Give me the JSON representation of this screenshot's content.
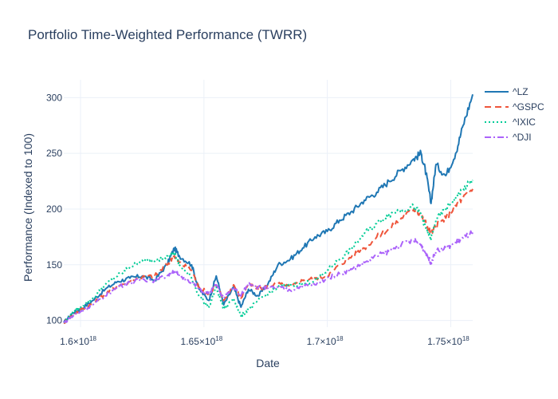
{
  "chart_data": {
    "type": "line",
    "title": "Portfolio Time-Weighted Performance (TWRR)",
    "xlabel": "Date",
    "ylabel": "Performance (Indexed to 100)",
    "xlim": [
      1.5932e+18,
      1.7589e+18
    ],
    "ylim": [
      94,
      316
    ],
    "x_ticks": [
      {
        "value": 1.6e+18,
        "base": "1.6×10",
        "exp": "18"
      },
      {
        "value": 1.65e+18,
        "base": "1.65×10",
        "exp": "18"
      },
      {
        "value": 1.7e+18,
        "base": "1.7×10",
        "exp": "18"
      },
      {
        "value": 1.75e+18,
        "base": "1.75×10",
        "exp": "18"
      }
    ],
    "y_ticks": [
      100,
      150,
      200,
      250,
      300
    ],
    "grid": true,
    "legend_position": "top-right",
    "x": [
      1.5932e+18,
      1.597e+18,
      1.6e+18,
      1.605e+18,
      1.61e+18,
      1.615e+18,
      1.62e+18,
      1.625e+18,
      1.63e+18,
      1.635e+18,
      1.638e+18,
      1.64e+18,
      1.645e+18,
      1.648e+18,
      1.652e+18,
      1.655e+18,
      1.658e+18,
      1.662e+18,
      1.665e+18,
      1.668e+18,
      1.672e+18,
      1.676e+18,
      1.68e+18,
      1.685e+18,
      1.69e+18,
      1.695e+18,
      1.7e+18,
      1.705e+18,
      1.71e+18,
      1.715e+18,
      1.72e+18,
      1.725e+18,
      1.73e+18,
      1.735e+18,
      1.738e+18,
      1.74e+18,
      1.742e+18,
      1.744e+18,
      1.748e+18,
      1.752e+18,
      1.755e+18,
      1.7589e+18
    ],
    "series": [
      {
        "name": "^LZ",
        "color": "#1f77b4",
        "dash": "",
        "values": [
          98,
          107,
          110,
          118,
          128,
          135,
          138,
          140,
          136,
          150,
          165,
          158,
          150,
          128,
          118,
          140,
          114,
          130,
          112,
          128,
          122,
          133,
          150,
          155,
          165,
          175,
          180,
          190,
          198,
          208,
          215,
          225,
          235,
          245,
          250,
          232,
          205,
          240,
          230,
          250,
          275,
          303
        ]
      },
      {
        "name": "^GSPC",
        "color": "#ef553b",
        "dash": "8,5",
        "values": [
          98,
          105,
          110,
          115,
          124,
          131,
          135,
          139,
          140,
          150,
          158,
          152,
          145,
          130,
          124,
          132,
          118,
          132,
          120,
          133,
          128,
          131,
          133,
          130,
          136,
          138,
          140,
          150,
          158,
          165,
          175,
          182,
          192,
          200,
          195,
          187,
          178,
          185,
          192,
          203,
          210,
          218
        ]
      },
      {
        "name": "^IXIC",
        "color": "#00cc96",
        "dash": "2,3",
        "values": [
          98,
          108,
          112,
          120,
          132,
          140,
          148,
          154,
          153,
          158,
          161,
          150,
          138,
          122,
          112,
          130,
          110,
          120,
          104,
          110,
          118,
          124,
          130,
          132,
          133,
          136,
          145,
          155,
          165,
          178,
          187,
          195,
          200,
          202,
          195,
          182,
          173,
          190,
          200,
          210,
          218,
          226
        ]
      },
      {
        "name": "^DJI",
        "color": "#ab63fa",
        "dash": "8,3,2,3",
        "values": [
          98,
          104,
          108,
          114,
          122,
          130,
          134,
          137,
          136,
          140,
          145,
          140,
          135,
          128,
          124,
          132,
          120,
          130,
          122,
          134,
          130,
          129,
          130,
          127,
          131,
          132,
          138,
          142,
          146,
          152,
          158,
          162,
          168,
          172,
          168,
          160,
          152,
          162,
          165,
          170,
          174,
          179
        ]
      }
    ]
  }
}
